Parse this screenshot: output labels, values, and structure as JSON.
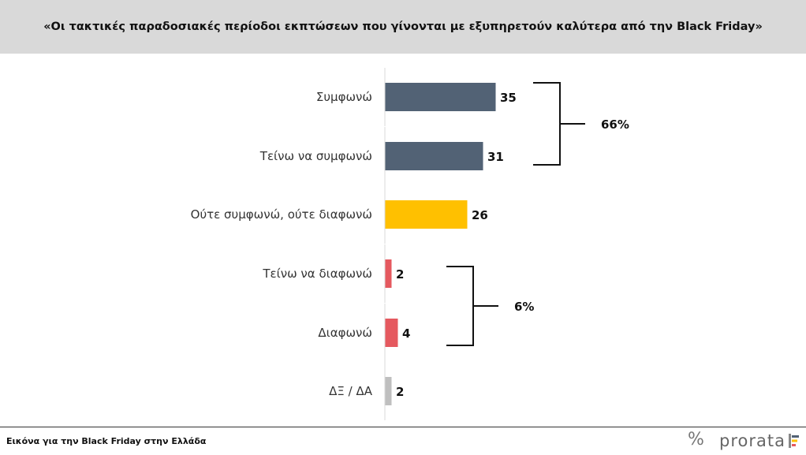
{
  "title": "«Οι τακτικές παραδοσιακές περίοδοι εκπτώσεων που γίνονται με εξυπηρετούν καλύτερα από την Black Friday»",
  "footer": {
    "caption": "Εικόνα για την Black Friday στην Ελλάδα",
    "logo_text": "prorata",
    "logo_mark": "%"
  },
  "colors": {
    "agree": "#526275",
    "neutral": "#ffc000",
    "disagree": "#e5595f",
    "dk": "#bfbfbf"
  },
  "chart_data": {
    "type": "bar",
    "orientation": "horizontal",
    "categories": [
      "Συμφωνώ",
      "Τείνω να συμφωνώ",
      "Ούτε συμφωνώ, ούτε διαφωνώ",
      "Τείνω να διαφωνώ",
      "Διαφωνώ",
      "ΔΞ / ΔΑ"
    ],
    "values": [
      35,
      31,
      26,
      2,
      4,
      2
    ],
    "title": "«Οι τακτικές παραδοσιακές περίοδοι εκπτώσεων που γίνονται με εξυπηρετούν καλύτερα από την Black Friday»",
    "xlabel": "",
    "ylabel": "",
    "xlim": [
      0,
      100
    ],
    "grid": false,
    "annotations": [
      {
        "label": "66%",
        "from": 0,
        "to": 1
      },
      {
        "label": "6%",
        "from": 3,
        "to": 4
      }
    ]
  }
}
